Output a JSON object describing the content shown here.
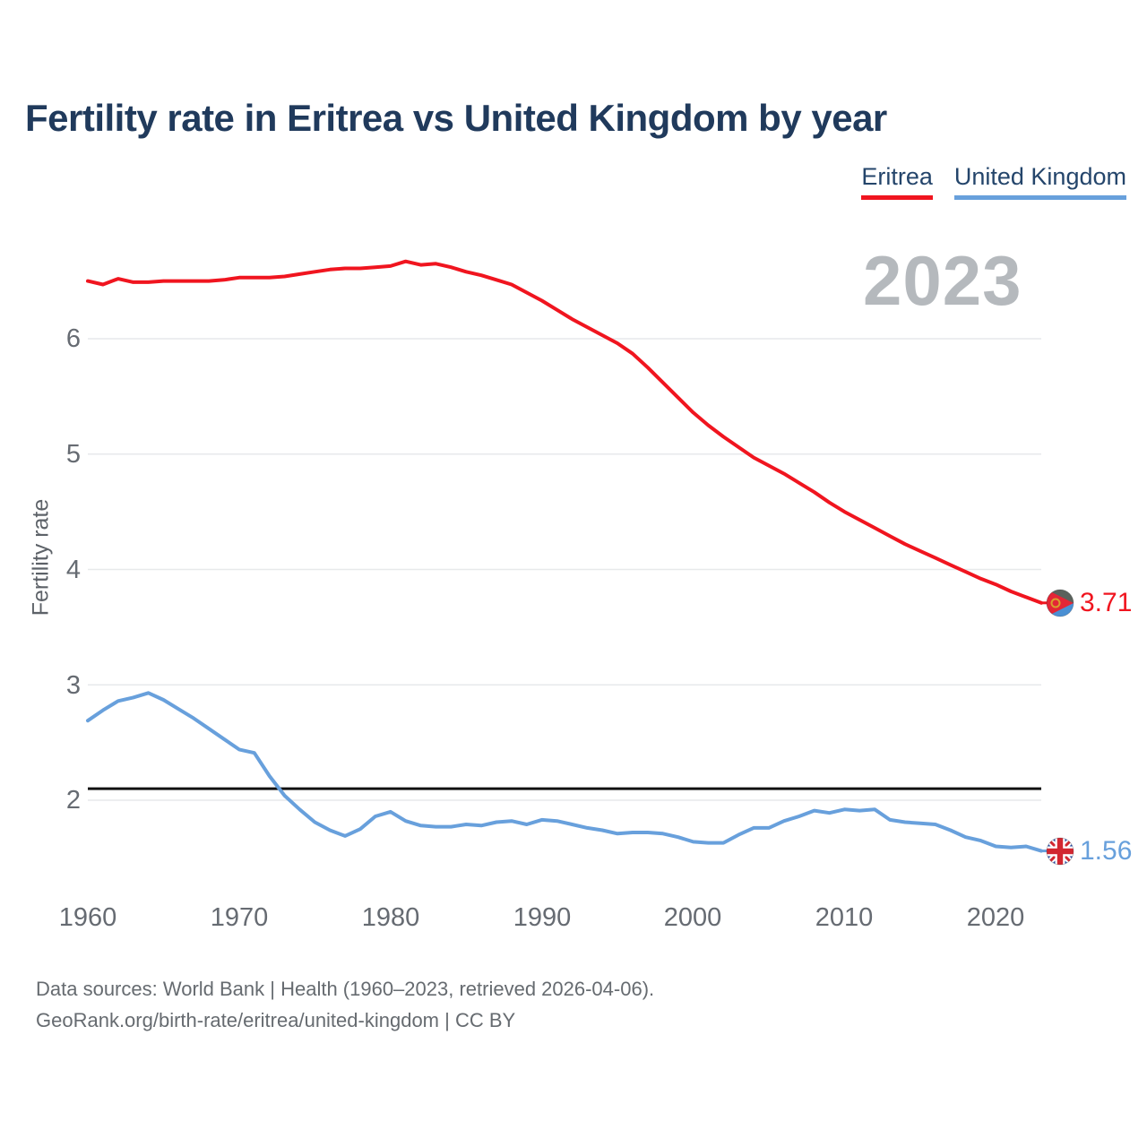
{
  "title": "Fertility rate in Eritrea vs United Kingdom by year",
  "watermark_year": "2023",
  "legend": [
    {
      "label": "Eritrea",
      "color": "#f0151f"
    },
    {
      "label": "United Kingdom",
      "color": "#68a0dc"
    }
  ],
  "y_axis": {
    "label": "Fertility rate",
    "ticks": [
      "6",
      "5",
      "4",
      "3",
      "2"
    ]
  },
  "x_axis": {
    "ticks": [
      "1960",
      "1970",
      "1980",
      "1990",
      "2000",
      "2010",
      "2020"
    ]
  },
  "footer": {
    "line1": "Data sources: World Bank | Health (1960–2023, retrieved 2026-04-06).",
    "line2": "GeoRank.org/birth-rate/eritrea/united-kingdom | CC BY"
  },
  "chart_data": {
    "type": "line",
    "title": "Fertility rate in Eritrea vs United Kingdom by year",
    "xlabel": "",
    "ylabel": "Fertility rate",
    "xlim": [
      1960,
      2023
    ],
    "ylim": [
      1.3,
      7.0
    ],
    "yticks": [
      6,
      5,
      4,
      3,
      2
    ],
    "xticks": [
      1960,
      1970,
      1980,
      1990,
      2000,
      2010,
      2020
    ],
    "grid": true,
    "legend_position": "top-right",
    "replacement_fertility_line": 2.1,
    "years": [
      1960,
      1961,
      1962,
      1963,
      1964,
      1965,
      1966,
      1967,
      1968,
      1969,
      1970,
      1971,
      1972,
      1973,
      1974,
      1975,
      1976,
      1977,
      1978,
      1979,
      1980,
      1981,
      1982,
      1983,
      1984,
      1985,
      1986,
      1987,
      1988,
      1989,
      1990,
      1991,
      1992,
      1993,
      1994,
      1995,
      1996,
      1997,
      1998,
      1999,
      2000,
      2001,
      2002,
      2003,
      2004,
      2005,
      2006,
      2007,
      2008,
      2009,
      2010,
      2011,
      2012,
      2013,
      2014,
      2015,
      2016,
      2017,
      2018,
      2019,
      2020,
      2021,
      2022,
      2023
    ],
    "series": [
      {
        "name": "Eritrea",
        "color": "#f0151f",
        "end_label": "3.71",
        "end_value": 3.71,
        "values": [
          6.5,
          6.47,
          6.52,
          6.49,
          6.49,
          6.5,
          6.5,
          6.5,
          6.5,
          6.51,
          6.53,
          6.53,
          6.53,
          6.54,
          6.56,
          6.58,
          6.6,
          6.61,
          6.61,
          6.62,
          6.63,
          6.67,
          6.64,
          6.65,
          6.62,
          6.58,
          6.55,
          6.51,
          6.47,
          6.4,
          6.33,
          6.25,
          6.17,
          6.1,
          6.03,
          5.96,
          5.87,
          5.75,
          5.62,
          5.49,
          5.36,
          5.25,
          5.15,
          5.06,
          4.97,
          4.9,
          4.83,
          4.75,
          4.67,
          4.58,
          4.5,
          4.43,
          4.36,
          4.29,
          4.22,
          4.16,
          4.1,
          4.04,
          3.98,
          3.92,
          3.87,
          3.81,
          3.76,
          3.71
        ]
      },
      {
        "name": "United Kingdom",
        "color": "#68a0dc",
        "end_label": "1.56",
        "end_value": 1.56,
        "values": [
          2.69,
          2.78,
          2.86,
          2.89,
          2.93,
          2.87,
          2.79,
          2.71,
          2.62,
          2.53,
          2.44,
          2.41,
          2.21,
          2.04,
          1.92,
          1.81,
          1.74,
          1.69,
          1.75,
          1.86,
          1.9,
          1.82,
          1.78,
          1.77,
          1.77,
          1.79,
          1.78,
          1.81,
          1.82,
          1.79,
          1.83,
          1.82,
          1.79,
          1.76,
          1.74,
          1.71,
          1.72,
          1.72,
          1.71,
          1.68,
          1.64,
          1.63,
          1.63,
          1.7,
          1.76,
          1.76,
          1.82,
          1.86,
          1.91,
          1.89,
          1.92,
          1.91,
          1.92,
          1.83,
          1.81,
          1.8,
          1.79,
          1.74,
          1.68,
          1.65,
          1.6,
          1.59,
          1.6,
          1.56
        ]
      }
    ]
  }
}
